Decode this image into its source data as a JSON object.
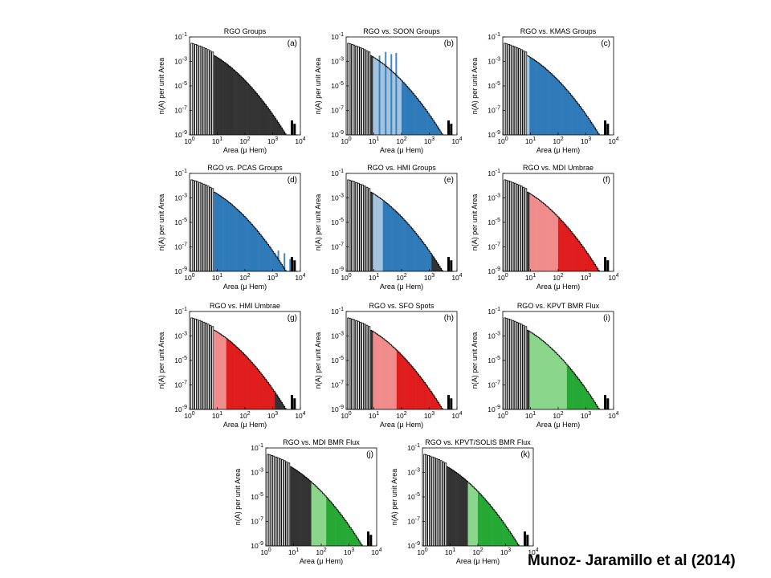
{
  "slide": {
    "credit": "Munoz- Jaramillo et al (2014)"
  },
  "axis": {
    "xlabel": "Area (μ Hem)",
    "ylabel": "n(A) per unit Area",
    "x_ticks": [
      "10^0",
      "10^1",
      "10^2",
      "10^3",
      "10^4"
    ],
    "y_ticks": [
      "10^-1",
      "10^-3",
      "10^-5",
      "10^-7",
      "10^-9"
    ],
    "xscale": "log",
    "yscale": "log",
    "xlim": [
      1,
      10000
    ],
    "ylim": [
      1e-09,
      0.1
    ]
  },
  "colors": {
    "blue": "#2f7ab9",
    "blue_light": "#a3c3df",
    "red": "#e01d1d",
    "red_light": "#f08c8c",
    "green": "#26a834",
    "green_light": "#8ad68a",
    "dark": "#333333",
    "outline": "#000000"
  },
  "chart_data": [
    {
      "type": "bar",
      "id": "a",
      "label": "(a)",
      "title": "RGO Groups",
      "accent": "dark",
      "light_range": null,
      "dark_range": [
        8,
        6000
      ],
      "spikes": []
    },
    {
      "type": "bar",
      "id": "b",
      "label": "(b)",
      "title": "RGO vs. SOON Groups",
      "accent": "blue",
      "light_range": [
        9,
        100
      ],
      "dark_range": [
        100,
        6000
      ],
      "spikes": [
        [
          15,
          0.003
        ],
        [
          25,
          0.006
        ],
        [
          40,
          0.004
        ],
        [
          60,
          0.005
        ]
      ]
    },
    {
      "type": "bar",
      "id": "c",
      "label": "(c)",
      "title": "RGO vs. KMAS Groups",
      "accent": "blue",
      "light_range": [
        5,
        9
      ],
      "dark_range": [
        9,
        6000
      ],
      "spikes": []
    },
    {
      "type": "bar",
      "id": "d",
      "label": "(d)",
      "title": "RGO vs. PCAS Groups",
      "accent": "blue",
      "light_range": [
        1.3,
        5
      ],
      "dark_range": [
        5,
        6000
      ],
      "spikes": [
        [
          1500,
          5e-08
        ],
        [
          2500,
          3e-08
        ],
        [
          4000,
          1e-08
        ]
      ]
    },
    {
      "type": "bar",
      "id": "e",
      "label": "(e)",
      "title": "RGO vs. HMI Groups",
      "accent": "blue",
      "light_range": [
        9,
        20
      ],
      "dark_range": [
        20,
        1200
      ],
      "spikes": []
    },
    {
      "type": "bar",
      "id": "f",
      "label": "(f)",
      "title": "RGO vs. MDI Umbrae",
      "accent": "red",
      "light_range": [
        9,
        100
      ],
      "dark_range": [
        100,
        2500
      ],
      "spikes": []
    },
    {
      "type": "bar",
      "id": "g",
      "label": "(g)",
      "title": "RGO vs. HMI Umbrae",
      "accent": "red",
      "light_range": [
        5,
        20
      ],
      "dark_range": [
        20,
        1200
      ],
      "spikes": []
    },
    {
      "type": "bar",
      "id": "h",
      "label": "(h)",
      "title": "RGO vs. SFO Spots",
      "accent": "red",
      "light_range": [
        9,
        60
      ],
      "dark_range": [
        60,
        6000
      ],
      "spikes": []
    },
    {
      "type": "bar",
      "id": "i",
      "label": "(i)",
      "title": "RGO vs. KPVT BMR Flux",
      "accent": "green",
      "light_range": [
        9,
        200
      ],
      "dark_range": [
        200,
        6000
      ],
      "spikes": []
    },
    {
      "type": "bar",
      "id": "j",
      "label": "(j)",
      "title": "RGO vs. MDI BMR Flux",
      "accent": "green",
      "light_range": [
        40,
        150
      ],
      "dark_range": [
        150,
        2500
      ],
      "spikes": []
    },
    {
      "type": "bar",
      "id": "k",
      "label": "(k)",
      "title": "RGO vs. KPVT/SOLIS BMR Flux",
      "accent": "green",
      "light_range": [
        40,
        100
      ],
      "dark_range": [
        100,
        2500
      ],
      "spikes": []
    }
  ]
}
